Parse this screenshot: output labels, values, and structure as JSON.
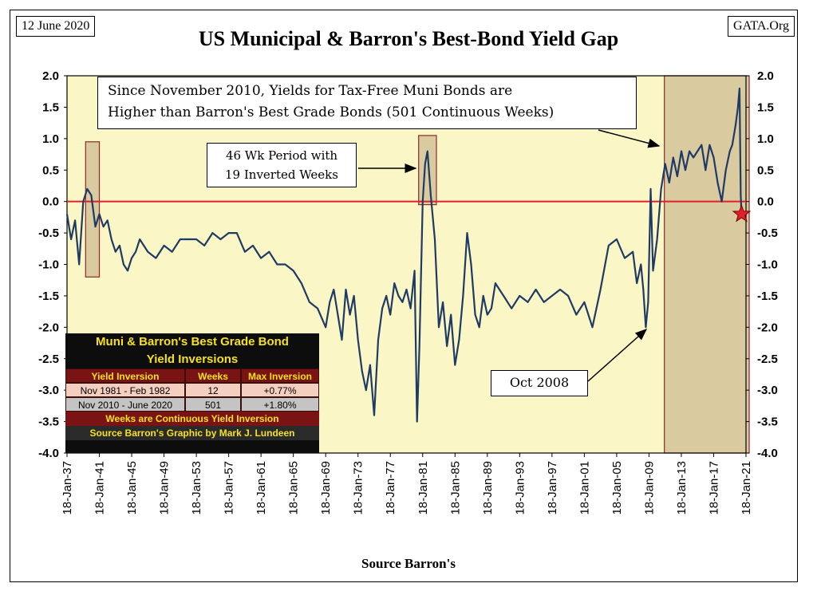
{
  "header": {
    "date": "12 June 2020",
    "site": "GATA.Org",
    "title": "US Municipal & Barron's Best-Bond Yield Gap"
  },
  "chart_data": {
    "type": "line",
    "title": "US Municipal & Barron's Best-Bond Yield Gap",
    "xlabel": "Source Barron's",
    "ylabel": "",
    "ylim": [
      -4.0,
      2.0
    ],
    "xlim_year": [
      1937,
      2021
    ],
    "y_ticks": [
      "2.0",
      "1.5",
      "1.0",
      "0.5",
      "0.0",
      "-0.5",
      "-1.0",
      "-1.5",
      "-2.0",
      "-2.5",
      "-3.0",
      "-3.5",
      "-4.0"
    ],
    "x_tick_labels": [
      "18-Jan-37",
      "18-Jan-41",
      "18-Jan-45",
      "18-Jan-49",
      "18-Jan-53",
      "18-Jan-57",
      "18-Jan-61",
      "18-Jan-65",
      "18-Jan-69",
      "18-Jan-73",
      "18-Jan-77",
      "18-Jan-81",
      "18-Jan-85",
      "18-Jan-89",
      "18-Jan-93",
      "18-Jan-97",
      "18-Jan-01",
      "18-Jan-05",
      "18-Jan-09",
      "18-Jan-13",
      "18-Jan-17",
      "18-Jan-21"
    ],
    "line_color": "#1f3a64",
    "zero_line_color": "#e0202a",
    "plot_background": "#fbf6c6",
    "highlight_color": "#d9caa0",
    "highlights": [
      {
        "from": 1939.3,
        "to": 1941.0,
        "ymin": -1.2,
        "ymax": 0.95
      },
      {
        "from": 1980.5,
        "to": 1982.7,
        "ymin": -0.05,
        "ymax": 1.05
      },
      {
        "from": 2010.9,
        "to": 2021.4,
        "ymin": -4.0,
        "ymax": 2.0
      }
    ],
    "current_marker": {
      "x": 2020.45,
      "y": -0.2,
      "color": "#e0202a"
    },
    "series": [
      {
        "x": [
          1937,
          1937.5,
          1938,
          1938.5,
          1939,
          1939.5,
          1940,
          1940.5,
          1941,
          1941.5,
          1942,
          1942.5,
          1943,
          1943.5,
          1944,
          1944.5,
          1945,
          1945.5,
          1946,
          1946.5,
          1947,
          1948,
          1949,
          1950,
          1951,
          1952,
          1953,
          1954,
          1955,
          1956,
          1957,
          1958,
          1959,
          1960,
          1961,
          1962,
          1963,
          1964,
          1965,
          1966,
          1967,
          1968,
          1969,
          1969.5,
          1970,
          1970.5,
          1971,
          1971.5,
          1972,
          1972.5,
          1973,
          1973.5,
          1974,
          1974.5,
          1975,
          1975.5,
          1976,
          1976.5,
          1977,
          1977.5,
          1978,
          1978.5,
          1979,
          1979.5,
          1980,
          1980.3,
          1980.6,
          1981,
          1981.3,
          1981.6,
          1982,
          1982.5,
          1983,
          1983.5,
          1984,
          1984.5,
          1985,
          1985.5,
          1986,
          1986.5,
          1987,
          1987.5,
          1988,
          1988.5,
          1989,
          1989.5,
          1990,
          1991,
          1992,
          1993,
          1994,
          1995,
          1996,
          1997,
          1998,
          1999,
          2000,
          2001,
          2002,
          2003,
          2004,
          2005,
          2006,
          2007,
          2007.5,
          2008,
          2008.3,
          2008.6,
          2008.9,
          2009.2,
          2009.5,
          2010,
          2010.5,
          2011,
          2011.5,
          2012,
          2012.5,
          2013,
          2013.5,
          2014,
          2014.5,
          2015,
          2015.5,
          2016,
          2016.5,
          2017,
          2017.5,
          2018,
          2018.5,
          2019,
          2019.3,
          2019.7,
          2020,
          2020.2,
          2020.35,
          2020.45
        ],
        "y": [
          -0.2,
          -0.6,
          -0.3,
          -1.0,
          0.0,
          0.2,
          0.1,
          -0.4,
          -0.2,
          -0.4,
          -0.3,
          -0.6,
          -0.8,
          -0.7,
          -1.0,
          -1.1,
          -0.9,
          -0.8,
          -0.6,
          -0.7,
          -0.8,
          -0.9,
          -0.7,
          -0.8,
          -0.6,
          -0.6,
          -0.6,
          -0.7,
          -0.5,
          -0.6,
          -0.5,
          -0.5,
          -0.8,
          -0.7,
          -0.9,
          -0.8,
          -1.0,
          -1.0,
          -1.1,
          -1.3,
          -1.6,
          -1.7,
          -2.0,
          -1.6,
          -1.4,
          -1.8,
          -2.2,
          -1.4,
          -1.8,
          -1.5,
          -2.2,
          -2.7,
          -3.0,
          -2.6,
          -3.4,
          -2.2,
          -1.7,
          -1.5,
          -1.8,
          -1.3,
          -1.5,
          -1.6,
          -1.4,
          -1.7,
          -1.1,
          -3.5,
          -2.3,
          0.0,
          0.6,
          0.8,
          0.1,
          -0.6,
          -2.0,
          -1.6,
          -2.3,
          -1.8,
          -2.6,
          -2.2,
          -1.5,
          -0.5,
          -1.0,
          -1.8,
          -2.0,
          -1.5,
          -1.8,
          -1.7,
          -1.3,
          -1.5,
          -1.7,
          -1.5,
          -1.6,
          -1.4,
          -1.6,
          -1.5,
          -1.4,
          -1.5,
          -1.8,
          -1.6,
          -2.0,
          -1.4,
          -0.7,
          -0.6,
          -0.9,
          -0.8,
          -1.3,
          -1.0,
          -1.4,
          -2.0,
          -1.6,
          0.2,
          -1.1,
          -0.6,
          0.2,
          0.6,
          0.3,
          0.7,
          0.4,
          0.8,
          0.5,
          0.8,
          0.7,
          0.8,
          0.9,
          0.5,
          0.9,
          0.7,
          0.3,
          0.0,
          0.5,
          0.8,
          0.9,
          1.2,
          1.5,
          1.8,
          0.1,
          -0.2
        ]
      }
    ],
    "annotations": [
      "Since November 2010, Yields for Tax-Free Muni Bonds  are",
      "Higher than Barron's Best Grade Bonds (501 Continuous Weeks)",
      "46 Wk Period with",
      "19 Inverted Weeks",
      "Oct 2008"
    ]
  },
  "callouts": {
    "main_line1": "Since November 2010, Yields for Tax-Free Muni Bonds  are",
    "main_line2": "Higher than Barron's Best Grade Bonds (501 Continuous Weeks)",
    "period_line1": "46 Wk Period with",
    "period_line2": "19 Inverted Weeks",
    "oct": "Oct 2008"
  },
  "table": {
    "title_line1": "Muni & Barron's Best Grade Bond",
    "title_line2": "Yield Inversions",
    "headers": [
      "Yield Inversion",
      "Weeks",
      "Max Inversion"
    ],
    "rows": [
      [
        "Nov 1981 - Feb 1982",
        "12",
        "+0.77%"
      ],
      [
        "Nov 2010 - June 2020",
        "501",
        "+1.80%"
      ]
    ],
    "footer1": "Weeks are Continuous Yield Inversion",
    "footer2": "Source Barron's Graphic by Mark J. Lundeen"
  },
  "footer": {
    "source": "Source Barron's"
  }
}
